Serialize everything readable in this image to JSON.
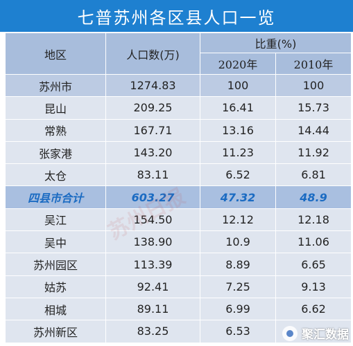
{
  "title": "七普苏州各区县人口一览",
  "headers": {
    "region": "地区",
    "population": "人口数(万)",
    "share": "比重(%)",
    "year2020": "2020年",
    "year2010": "2010年"
  },
  "rows": [
    {
      "region": "苏州市",
      "population": "1274.83",
      "y2020": "100",
      "y2010": "100",
      "style": "mid"
    },
    {
      "region": "昆山",
      "population": "209.25",
      "y2020": "16.41",
      "y2010": "15.73",
      "style": "light"
    },
    {
      "region": "常熟",
      "population": "167.71",
      "y2020": "13.16",
      "y2010": "14.44",
      "style": "light"
    },
    {
      "region": "张家港",
      "population": "143.20",
      "y2020": "11.23",
      "y2010": "11.92",
      "style": "light"
    },
    {
      "region": "太仓",
      "population": "83.11",
      "y2020": "6.52",
      "y2010": "6.81",
      "style": "light"
    },
    {
      "region": "四县市合计",
      "population": "603.27",
      "y2020": "47.32",
      "y2010": "48.9",
      "style": "total"
    },
    {
      "region": "吴江",
      "population": "154.50",
      "y2020": "12.12",
      "y2010": "12.18",
      "style": "light"
    },
    {
      "region": "吴中",
      "population": "138.90",
      "y2020": "10.9",
      "y2010": "11.06",
      "style": "light"
    },
    {
      "region": "苏州园区",
      "population": "113.39",
      "y2020": "8.89",
      "y2010": "6.65",
      "style": "light"
    },
    {
      "region": "姑苏",
      "population": "92.41",
      "y2020": "7.25",
      "y2010": "9.13",
      "style": "light"
    },
    {
      "region": "相城",
      "population": "89.11",
      "y2020": "6.99",
      "y2010": "6.62",
      "style": "light"
    },
    {
      "region": "苏州新区",
      "population": "83.25",
      "y2020": "6.53",
      "y2010": "",
      "style": "light"
    }
  ],
  "watermark": "苏州日报",
  "brand": {
    "name": "聚汇数据",
    "icon": "brand-logo-icon"
  },
  "colors": {
    "title_bg": "#1e80d0",
    "header_bg": "#a8bddc",
    "total_text": "#1b6bc2"
  }
}
